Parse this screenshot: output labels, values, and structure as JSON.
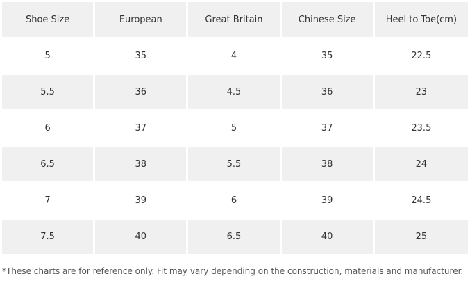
{
  "table": {
    "headers": [
      "Shoe Size",
      "European",
      "Great Britain",
      "Chinese Size",
      "Heel to Toe(cm)"
    ],
    "rows": [
      [
        "5",
        "35",
        "4",
        "35",
        "22.5"
      ],
      [
        "5.5",
        "36",
        "4.5",
        "36",
        "23"
      ],
      [
        "6",
        "37",
        "5",
        "37",
        "23.5"
      ],
      [
        "6.5",
        "38",
        "5.5",
        "38",
        "24"
      ],
      [
        "7",
        "39",
        "6",
        "39",
        "24.5"
      ],
      [
        "7.5",
        "40",
        "6.5",
        "40",
        "25"
      ]
    ]
  },
  "footnote": "*These charts are for reference only. Fit may vary depending on the construction, materials and manufacturer.",
  "colors": {
    "shaded_row": "#f0f0f0",
    "text": "#333333"
  }
}
